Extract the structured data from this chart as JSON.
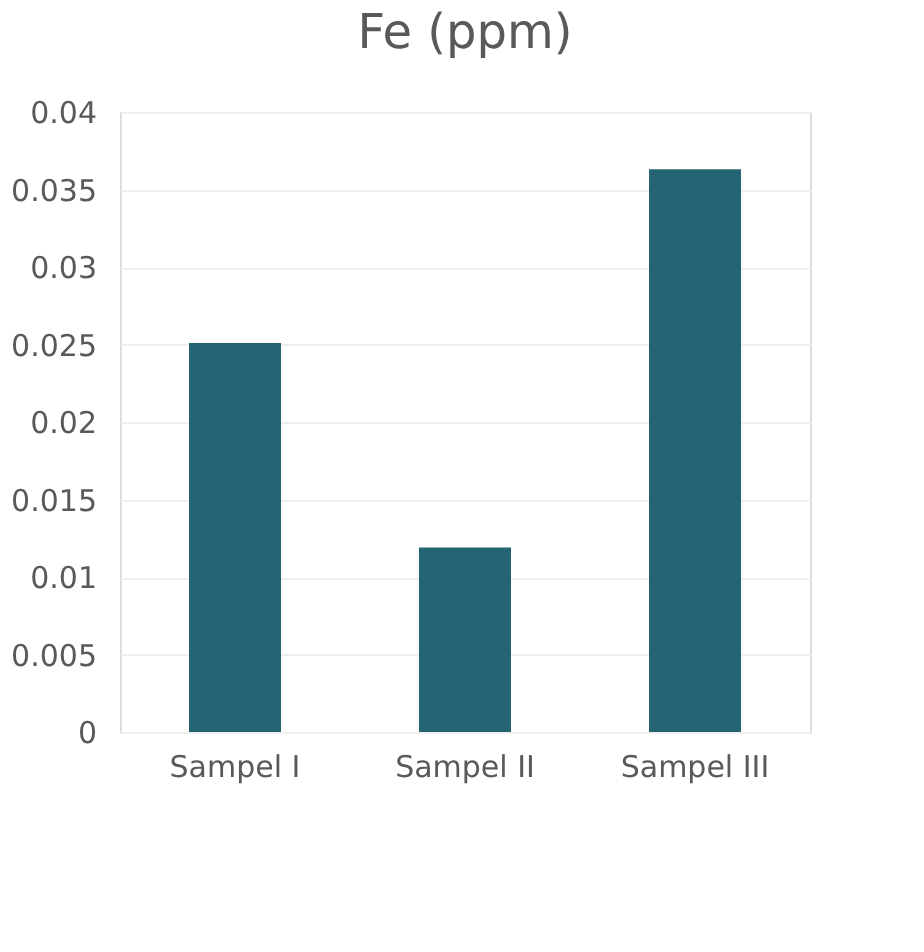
{
  "chart_data": {
    "type": "bar",
    "title": "Fe (ppm)",
    "categories": [
      "Sampel I",
      "Sampel II",
      "Sampel III"
    ],
    "values": [
      0.0251,
      0.0119,
      0.0363
    ],
    "color": "#256472",
    "ylim": [
      0,
      0.04
    ],
    "yticks": [
      0,
      0.005,
      0.01,
      0.015,
      0.02,
      0.025,
      0.03,
      0.035,
      0.04
    ],
    "grid": "y"
  }
}
